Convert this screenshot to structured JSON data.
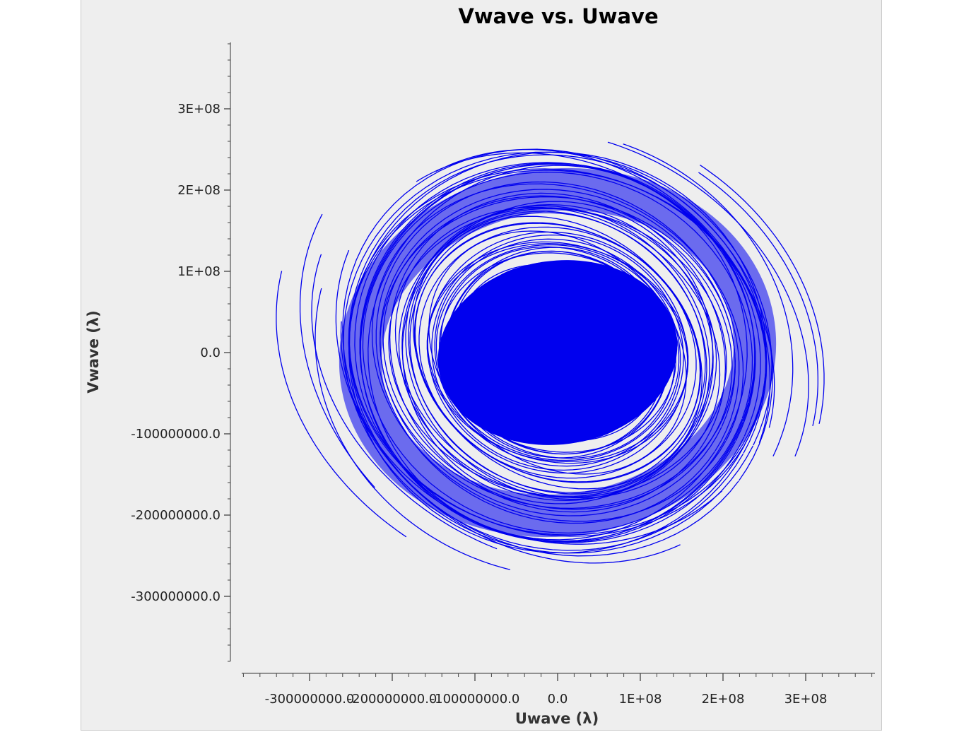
{
  "chart_data": {
    "type": "scatter",
    "title": "Vwave vs. Uwave",
    "xlabel": "Uwave (λ)",
    "ylabel": "Vwave (λ)",
    "xlim": [
      -380000000,
      380000000
    ],
    "ylim": [
      -380000000,
      380000000
    ],
    "x_ticks": [
      {
        "value": -300000000,
        "label": "-300000000.0"
      },
      {
        "value": -200000000,
        "label": "-200000000.0"
      },
      {
        "value": -100000000,
        "label": "-100000000.0"
      },
      {
        "value": 0,
        "label": "0.0"
      },
      {
        "value": 100000000,
        "label": "1E+08"
      },
      {
        "value": 200000000,
        "label": "2E+08"
      },
      {
        "value": 300000000,
        "label": "3E+08"
      }
    ],
    "y_ticks": [
      {
        "value": 300000000,
        "label": "3E+08"
      },
      {
        "value": 200000000,
        "label": "2E+08"
      },
      {
        "value": 100000000,
        "label": "1E+08"
      },
      {
        "value": 0,
        "label": "0.0"
      },
      {
        "value": -100000000,
        "label": "-100000000.0"
      },
      {
        "value": -200000000,
        "label": "-200000000.0"
      },
      {
        "value": -300000000,
        "label": "-300000000.0"
      }
    ],
    "minor_tick_step": 20000000,
    "grid": false,
    "legend": "none",
    "color": "#0000ee",
    "description_of_marks": "dense concentric elliptical uv-coverage tracks centered near (0,0), extending to about ±3.7E+08",
    "series": [
      {
        "tracks": [
          {
            "a": 60000000,
            "b": 55000000,
            "t0": 0,
            "t1": 6.28
          },
          {
            "a": 80000000,
            "b": 70000000,
            "t0": 0,
            "t1": 6.28
          },
          {
            "a": 100000000,
            "b": 90000000,
            "t0": 0,
            "t1": 6.28
          },
          {
            "a": 120000000,
            "b": 105000000,
            "t0": 0,
            "t1": 6.28
          },
          {
            "a": 140000000,
            "b": 125000000,
            "t0": 0,
            "t1": 6.28
          },
          {
            "a": 160000000,
            "b": 140000000,
            "t0": 0,
            "t1": 6.28
          },
          {
            "a": 180000000,
            "b": 160000000,
            "t0": 0,
            "t1": 6.28
          },
          {
            "a": 200000000,
            "b": 180000000,
            "t0": 0,
            "t1": 6.28
          },
          {
            "a": 220000000,
            "b": 200000000,
            "t0": 0,
            "t1": 6.28
          },
          {
            "a": 240000000,
            "b": 220000000,
            "t0": 0,
            "t1": 6.28
          },
          {
            "a": 255000000,
            "b": 235000000,
            "t0": 0,
            "t1": 6.28
          },
          {
            "a": 270000000,
            "b": 240000000,
            "t0": 0.3,
            "t1": 2.8
          },
          {
            "a": 270000000,
            "b": 240000000,
            "t0": 3.4,
            "t1": 5.9
          },
          {
            "a": 300000000,
            "b": 260000000,
            "t0": 0.1,
            "t1": 1.8
          },
          {
            "a": 300000000,
            "b": 260000000,
            "t0": 3.3,
            "t1": 4.9
          },
          {
            "a": 340000000,
            "b": 290000000,
            "t0": 0.2,
            "t1": 1.4
          },
          {
            "a": 340000000,
            "b": 290000000,
            "t0": 3.3,
            "t1": 4.5
          }
        ]
      }
    ]
  }
}
